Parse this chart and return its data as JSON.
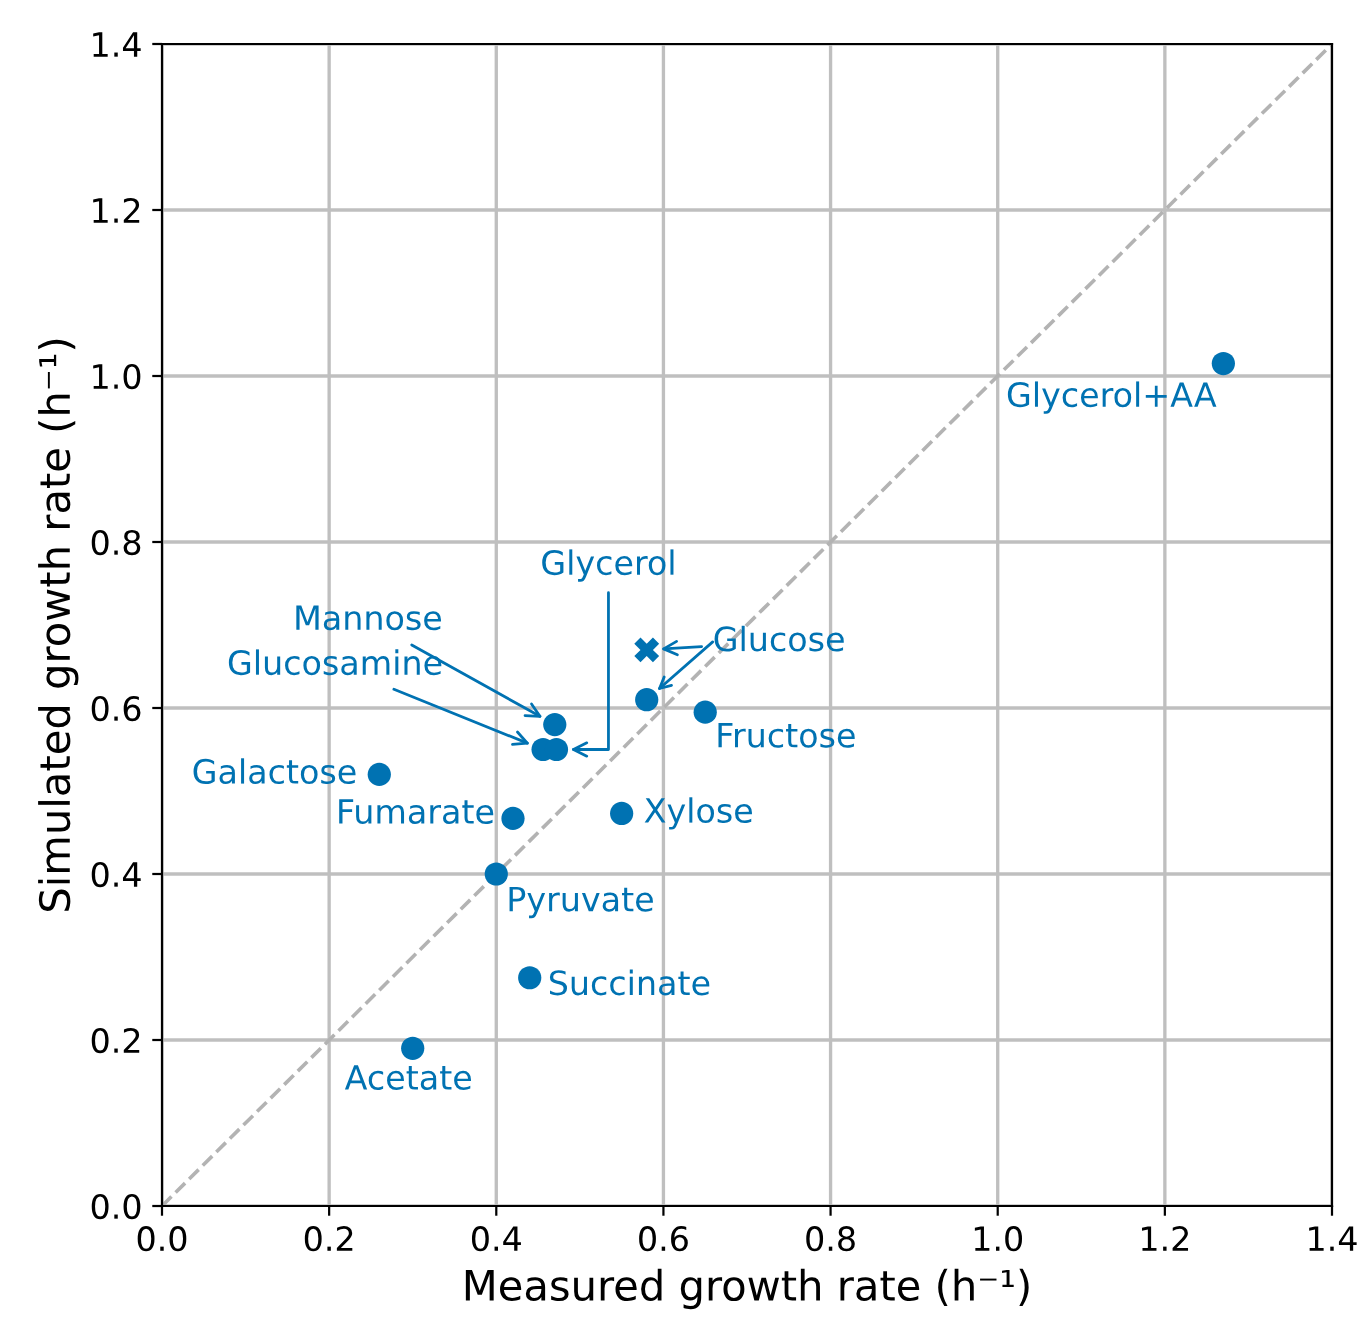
{
  "chart_data": {
    "type": "scatter",
    "xlabel": "Measured growth rate (h⁻¹)",
    "ylabel": "Simulated growth rate (h⁻¹)",
    "xlim": [
      0,
      1.4
    ],
    "ylim": [
      0,
      1.4
    ],
    "xticks": [
      {
        "value": 0,
        "label": "0.0"
      },
      {
        "value": 0.2,
        "label": "0.2"
      },
      {
        "value": 0.4,
        "label": "0.4"
      },
      {
        "value": 0.6,
        "label": "0.6"
      },
      {
        "value": 0.8,
        "label": "0.8"
      },
      {
        "value": 1.0,
        "label": "1.0"
      },
      {
        "value": 1.2,
        "label": "1.2"
      },
      {
        "value": 1.4,
        "label": "1.4"
      }
    ],
    "yticks": [
      {
        "value": 0,
        "label": "0.0"
      },
      {
        "value": 0.2,
        "label": "0.2"
      },
      {
        "value": 0.4,
        "label": "0.4"
      },
      {
        "value": 0.6,
        "label": "0.6"
      },
      {
        "value": 0.8,
        "label": "0.8"
      },
      {
        "value": 1.0,
        "label": "1.0"
      },
      {
        "value": 1.2,
        "label": "1.2"
      },
      {
        "value": 1.4,
        "label": "1.4"
      }
    ],
    "grid": true,
    "series": [
      {
        "type": "line",
        "color": "#b3b3b3",
        "line_style": "dashed",
        "marker": "none",
        "x": [
          0,
          1.4
        ],
        "values": [
          0,
          1.4
        ]
      },
      {
        "color": "#0072b2",
        "marker": "circle",
        "x": [
          1.27,
          0.58,
          0.65,
          0.47,
          0.456,
          0.472,
          0.26,
          0.42,
          0.55,
          0.4,
          0.44,
          0.3
        ],
        "values": [
          1.015,
          0.61,
          0.595,
          0.58,
          0.55,
          0.55,
          0.52,
          0.467,
          0.473,
          0.4,
          0.275,
          0.19
        ]
      },
      {
        "color": "#0072b2",
        "marker": "cross",
        "x": [
          0.58
        ],
        "values": [
          0.67
        ]
      }
    ],
    "annotations": [
      {
        "text": "Glycerol+AA",
        "x": 1.27,
        "y": 1.015
      },
      {
        "text": "Glucose",
        "x": 0.58,
        "y": 0.67
      },
      {
        "text": "Fructose",
        "x": 0.65,
        "y": 0.595
      },
      {
        "text": "Mannose",
        "x": 0.47,
        "y": 0.58
      },
      {
        "text": "Glucosamine",
        "x": 0.456,
        "y": 0.55
      },
      {
        "text": "Glycerol",
        "x": 0.472,
        "y": 0.55
      },
      {
        "text": "Galactose",
        "x": 0.26,
        "y": 0.52
      },
      {
        "text": "Fumarate",
        "x": 0.42,
        "y": 0.467
      },
      {
        "text": "Xylose",
        "x": 0.55,
        "y": 0.473
      },
      {
        "text": "Pyruvate",
        "x": 0.4,
        "y": 0.4
      },
      {
        "text": "Succinate",
        "x": 0.44,
        "y": 0.275
      },
      {
        "text": "Acetate",
        "x": 0.3,
        "y": 0.19
      }
    ]
  }
}
